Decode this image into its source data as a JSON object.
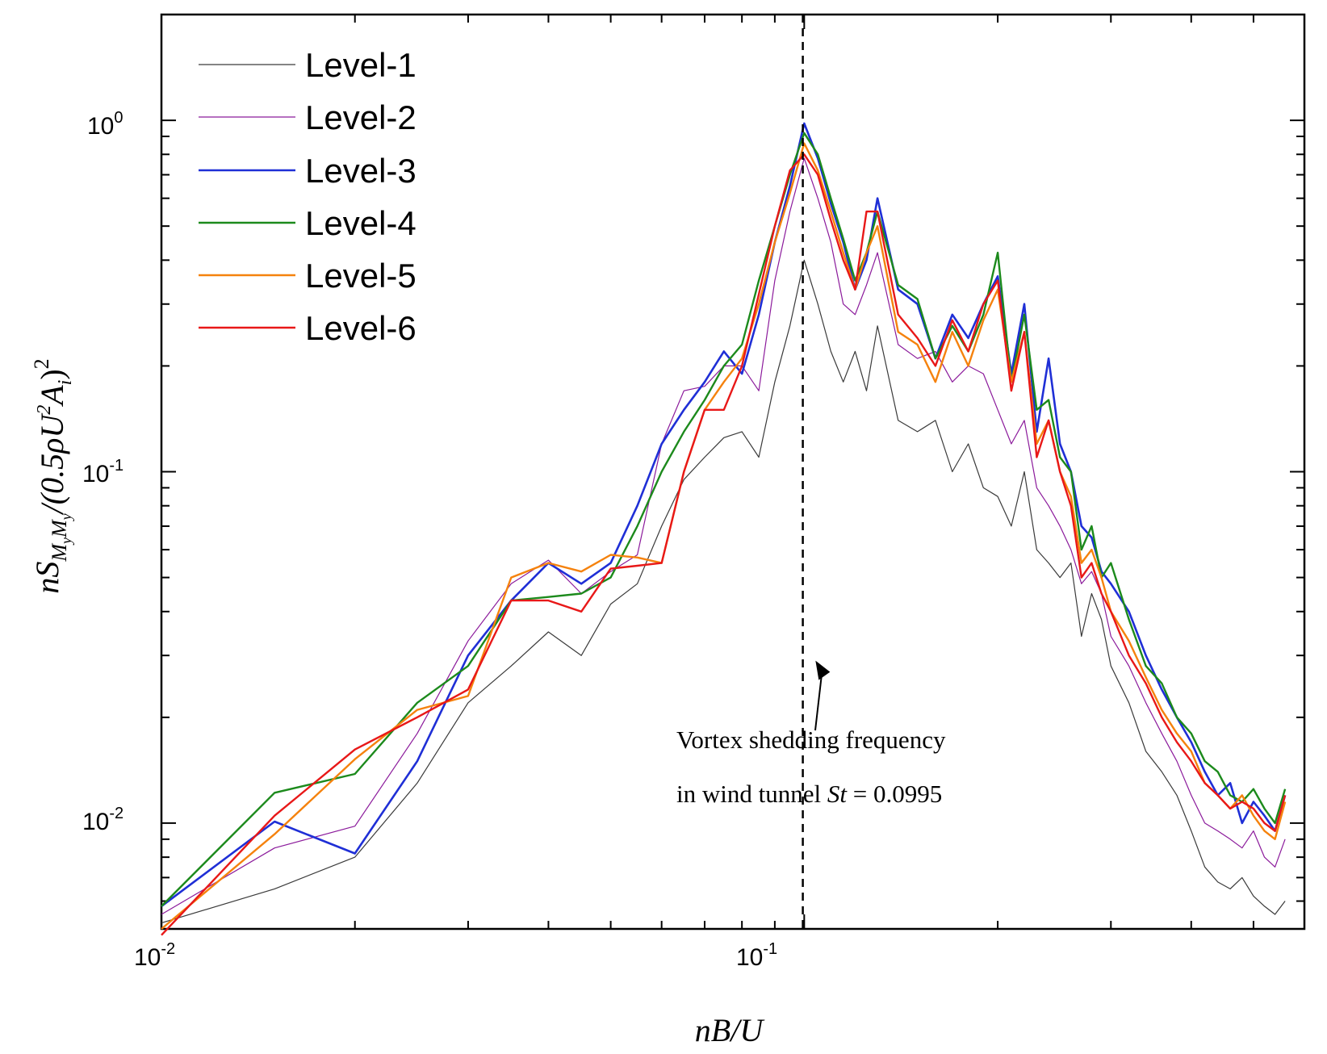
{
  "chart_data": {
    "type": "line",
    "xscale": "log",
    "yscale": "log",
    "xlim": [
      0.01,
      0.6
    ],
    "ylim": [
      0.005,
      2.0
    ],
    "xlabel": "nB/U",
    "ylabel": "nS_MyMy/(0.5ρU²A_i)²",
    "ylabel_parts": {
      "n": "n",
      "S": "S",
      "sub": "M",
      "subsub": "y",
      "sub2": "M",
      "subsub2": "y",
      "rest": "/(0.5ρU",
      "pow2": "2",
      "A": "A",
      "i": "i",
      "close": ")",
      "outer": "2"
    },
    "xlabel_parts": {
      "text": "nB/U"
    },
    "x_ticks": [
      {
        "value": 0.01,
        "base": "10",
        "exp": "-2"
      },
      {
        "value": 0.1,
        "base": "10",
        "exp": "-1"
      }
    ],
    "y_ticks": [
      {
        "value": 0.01,
        "base": "10",
        "exp": "-2"
      },
      {
        "value": 0.1,
        "base": "10",
        "exp": "-1"
      },
      {
        "value": 1,
        "base": "10",
        "exp": "0"
      }
    ],
    "vline": {
      "x": 0.0995,
      "style": "dashed"
    },
    "annotation": {
      "line1": "Vortex shedding frequency",
      "line2_pre": "in wind tunnel ",
      "line2_italic": "St",
      "line2_post": " = 0.0995",
      "arrow_to_x": 0.1,
      "arrow_to_y": 0.029
    },
    "legend_position": "top-left",
    "series": [
      {
        "name": "Level-1",
        "color": "#3a3a3a",
        "width": 1.2,
        "x": [
          0.01,
          0.015,
          0.02,
          0.025,
          0.03,
          0.035,
          0.04,
          0.045,
          0.05,
          0.055,
          0.06,
          0.065,
          0.07,
          0.075,
          0.08,
          0.085,
          0.09,
          0.095,
          0.1,
          0.105,
          0.11,
          0.115,
          0.12,
          0.125,
          0.13,
          0.14,
          0.15,
          0.16,
          0.17,
          0.18,
          0.19,
          0.2,
          0.21,
          0.22,
          0.23,
          0.24,
          0.25,
          0.26,
          0.27,
          0.28,
          0.29,
          0.3,
          0.32,
          0.34,
          0.36,
          0.38,
          0.4,
          0.42,
          0.44,
          0.46,
          0.48,
          0.5,
          0.52,
          0.54,
          0.56
        ],
        "y": [
          0.0052,
          0.0065,
          0.008,
          0.013,
          0.022,
          0.028,
          0.035,
          0.03,
          0.042,
          0.048,
          0.07,
          0.095,
          0.11,
          0.125,
          0.13,
          0.11,
          0.18,
          0.26,
          0.4,
          0.3,
          0.22,
          0.18,
          0.22,
          0.17,
          0.26,
          0.14,
          0.13,
          0.14,
          0.1,
          0.12,
          0.09,
          0.085,
          0.07,
          0.1,
          0.06,
          0.055,
          0.05,
          0.055,
          0.034,
          0.045,
          0.038,
          0.028,
          0.022,
          0.016,
          0.014,
          0.012,
          0.0095,
          0.0075,
          0.0068,
          0.0065,
          0.007,
          0.0062,
          0.0058,
          0.0055,
          0.006
        ]
      },
      {
        "name": "Level-2",
        "color": "#8b1a9b",
        "width": 1.2,
        "x": [
          0.01,
          0.015,
          0.02,
          0.025,
          0.03,
          0.035,
          0.04,
          0.045,
          0.05,
          0.055,
          0.06,
          0.065,
          0.07,
          0.075,
          0.08,
          0.085,
          0.09,
          0.095,
          0.1,
          0.105,
          0.11,
          0.115,
          0.12,
          0.125,
          0.13,
          0.14,
          0.15,
          0.16,
          0.17,
          0.18,
          0.19,
          0.2,
          0.21,
          0.22,
          0.23,
          0.24,
          0.25,
          0.26,
          0.27,
          0.28,
          0.29,
          0.3,
          0.32,
          0.34,
          0.36,
          0.38,
          0.4,
          0.42,
          0.44,
          0.46,
          0.48,
          0.5,
          0.52,
          0.54,
          0.56
        ],
        "y": [
          0.0055,
          0.0085,
          0.0098,
          0.018,
          0.033,
          0.048,
          0.056,
          0.045,
          0.052,
          0.058,
          0.12,
          0.17,
          0.175,
          0.2,
          0.2,
          0.17,
          0.35,
          0.55,
          0.78,
          0.6,
          0.45,
          0.3,
          0.28,
          0.34,
          0.42,
          0.23,
          0.21,
          0.22,
          0.18,
          0.2,
          0.19,
          0.15,
          0.12,
          0.14,
          0.09,
          0.08,
          0.07,
          0.06,
          0.048,
          0.052,
          0.045,
          0.034,
          0.028,
          0.022,
          0.018,
          0.015,
          0.012,
          0.01,
          0.0095,
          0.009,
          0.0085,
          0.0095,
          0.008,
          0.0075,
          0.009
        ]
      },
      {
        "name": "Level-3",
        "color": "#1f2fd6",
        "width": 2.6,
        "x": [
          0.01,
          0.015,
          0.02,
          0.025,
          0.03,
          0.035,
          0.04,
          0.045,
          0.05,
          0.055,
          0.06,
          0.065,
          0.07,
          0.075,
          0.08,
          0.085,
          0.09,
          0.095,
          0.1,
          0.105,
          0.11,
          0.115,
          0.12,
          0.125,
          0.13,
          0.14,
          0.15,
          0.16,
          0.17,
          0.18,
          0.19,
          0.2,
          0.21,
          0.22,
          0.23,
          0.24,
          0.25,
          0.26,
          0.27,
          0.28,
          0.29,
          0.3,
          0.32,
          0.34,
          0.36,
          0.38,
          0.4,
          0.42,
          0.44,
          0.46,
          0.48,
          0.5,
          0.52,
          0.54,
          0.56
        ],
        "y": [
          0.0058,
          0.0101,
          0.0082,
          0.015,
          0.03,
          0.043,
          0.055,
          0.048,
          0.055,
          0.08,
          0.12,
          0.15,
          0.18,
          0.22,
          0.19,
          0.28,
          0.45,
          0.65,
          0.98,
          0.78,
          0.58,
          0.45,
          0.33,
          0.4,
          0.6,
          0.33,
          0.3,
          0.21,
          0.28,
          0.24,
          0.3,
          0.36,
          0.19,
          0.3,
          0.13,
          0.21,
          0.12,
          0.1,
          0.07,
          0.065,
          0.052,
          0.048,
          0.04,
          0.03,
          0.024,
          0.02,
          0.017,
          0.014,
          0.012,
          0.013,
          0.01,
          0.0115,
          0.0105,
          0.0095,
          0.012
        ]
      },
      {
        "name": "Level-4",
        "color": "#1c8a1c",
        "width": 2.4,
        "x": [
          0.01,
          0.015,
          0.02,
          0.025,
          0.03,
          0.035,
          0.04,
          0.045,
          0.05,
          0.055,
          0.06,
          0.065,
          0.07,
          0.075,
          0.08,
          0.085,
          0.09,
          0.095,
          0.1,
          0.105,
          0.11,
          0.115,
          0.12,
          0.125,
          0.13,
          0.14,
          0.15,
          0.16,
          0.17,
          0.18,
          0.19,
          0.2,
          0.21,
          0.22,
          0.23,
          0.24,
          0.25,
          0.26,
          0.27,
          0.28,
          0.29,
          0.3,
          0.32,
          0.34,
          0.36,
          0.38,
          0.4,
          0.42,
          0.44,
          0.46,
          0.48,
          0.5,
          0.52,
          0.54,
          0.56
        ],
        "y": [
          0.0058,
          0.0122,
          0.0138,
          0.022,
          0.028,
          0.043,
          0.044,
          0.045,
          0.05,
          0.07,
          0.1,
          0.13,
          0.16,
          0.2,
          0.23,
          0.35,
          0.5,
          0.7,
          0.92,
          0.8,
          0.6,
          0.46,
          0.35,
          0.42,
          0.55,
          0.34,
          0.31,
          0.21,
          0.26,
          0.22,
          0.28,
          0.42,
          0.18,
          0.28,
          0.15,
          0.16,
          0.11,
          0.1,
          0.06,
          0.07,
          0.05,
          0.055,
          0.038,
          0.028,
          0.025,
          0.02,
          0.018,
          0.015,
          0.014,
          0.012,
          0.0115,
          0.0125,
          0.011,
          0.01,
          0.0125
        ]
      },
      {
        "name": "Level-5",
        "color": "#f5820d",
        "width": 2.4,
        "x": [
          0.01,
          0.015,
          0.02,
          0.025,
          0.03,
          0.035,
          0.04,
          0.045,
          0.05,
          0.055,
          0.06,
          0.065,
          0.07,
          0.075,
          0.08,
          0.085,
          0.09,
          0.095,
          0.1,
          0.105,
          0.11,
          0.115,
          0.12,
          0.125,
          0.13,
          0.14,
          0.15,
          0.16,
          0.17,
          0.18,
          0.19,
          0.2,
          0.21,
          0.22,
          0.23,
          0.24,
          0.25,
          0.26,
          0.27,
          0.28,
          0.29,
          0.3,
          0.32,
          0.34,
          0.36,
          0.38,
          0.4,
          0.42,
          0.44,
          0.46,
          0.48,
          0.5,
          0.52,
          0.54,
          0.56
        ],
        "y": [
          0.005,
          0.0093,
          0.0152,
          0.021,
          0.023,
          0.05,
          0.055,
          0.052,
          0.058,
          0.057,
          0.055,
          0.1,
          0.15,
          0.18,
          0.21,
          0.3,
          0.45,
          0.62,
          0.86,
          0.72,
          0.55,
          0.42,
          0.33,
          0.42,
          0.5,
          0.25,
          0.23,
          0.18,
          0.25,
          0.2,
          0.27,
          0.33,
          0.18,
          0.25,
          0.12,
          0.14,
          0.1,
          0.085,
          0.055,
          0.06,
          0.05,
          0.04,
          0.033,
          0.026,
          0.021,
          0.018,
          0.016,
          0.013,
          0.012,
          0.011,
          0.012,
          0.0105,
          0.0095,
          0.009,
          0.0115
        ]
      },
      {
        "name": "Level-6",
        "color": "#e81818",
        "width": 2.4,
        "x": [
          0.01,
          0.015,
          0.02,
          0.025,
          0.03,
          0.035,
          0.04,
          0.045,
          0.05,
          0.055,
          0.06,
          0.065,
          0.07,
          0.075,
          0.08,
          0.085,
          0.09,
          0.095,
          0.1,
          0.105,
          0.11,
          0.115,
          0.12,
          0.125,
          0.13,
          0.14,
          0.15,
          0.16,
          0.17,
          0.18,
          0.19,
          0.2,
          0.21,
          0.22,
          0.23,
          0.24,
          0.25,
          0.26,
          0.27,
          0.28,
          0.29,
          0.3,
          0.32,
          0.34,
          0.36,
          0.38,
          0.4,
          0.42,
          0.44,
          0.46,
          0.48,
          0.5,
          0.52,
          0.54,
          0.56
        ],
        "y": [
          0.0048,
          0.0105,
          0.0162,
          0.02,
          0.024,
          0.043,
          0.043,
          0.04,
          0.053,
          0.054,
          0.055,
          0.1,
          0.15,
          0.15,
          0.2,
          0.32,
          0.5,
          0.72,
          0.8,
          0.7,
          0.52,
          0.4,
          0.33,
          0.55,
          0.55,
          0.28,
          0.24,
          0.2,
          0.27,
          0.22,
          0.3,
          0.35,
          0.17,
          0.25,
          0.11,
          0.14,
          0.1,
          0.08,
          0.05,
          0.055,
          0.045,
          0.04,
          0.03,
          0.025,
          0.02,
          0.017,
          0.015,
          0.013,
          0.012,
          0.011,
          0.0115,
          0.011,
          0.01,
          0.0095,
          0.012
        ]
      }
    ]
  }
}
